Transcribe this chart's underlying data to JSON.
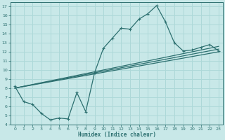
{
  "xlabel": "Humidex (Indice chaleur)",
  "bg_color": "#c8e8e8",
  "grid_color": "#add8d8",
  "line_color": "#2d7070",
  "xlim": [
    -0.5,
    23.5
  ],
  "ylim": [
    4,
    17.5
  ],
  "xticks": [
    0,
    1,
    2,
    3,
    4,
    5,
    6,
    7,
    8,
    9,
    10,
    11,
    12,
    13,
    14,
    15,
    16,
    17,
    18,
    19,
    20,
    21,
    22,
    23
  ],
  "yticks": [
    4,
    5,
    6,
    7,
    8,
    9,
    10,
    11,
    12,
    13,
    14,
    15,
    16,
    17
  ],
  "line1_x": [
    0,
    1,
    2,
    3,
    4,
    5,
    6,
    7,
    8,
    9,
    10,
    11,
    12,
    13,
    14,
    15,
    16,
    17,
    18,
    19,
    20,
    21,
    22,
    23
  ],
  "line1_y": [
    8.2,
    6.5,
    6.2,
    5.2,
    4.5,
    4.7,
    4.6,
    7.5,
    5.4,
    9.7,
    12.4,
    13.5,
    14.6,
    14.5,
    15.6,
    16.2,
    17.1,
    15.3,
    13.0,
    12.1,
    12.2,
    12.5,
    12.8,
    12.1
  ],
  "line2_x": [
    0,
    23
  ],
  "line2_y": [
    8.0,
    12.0
  ],
  "line3_x": [
    0,
    23
  ],
  "line3_y": [
    8.0,
    12.3
  ],
  "line4_x": [
    0,
    23
  ],
  "line4_y": [
    8.0,
    12.6
  ]
}
